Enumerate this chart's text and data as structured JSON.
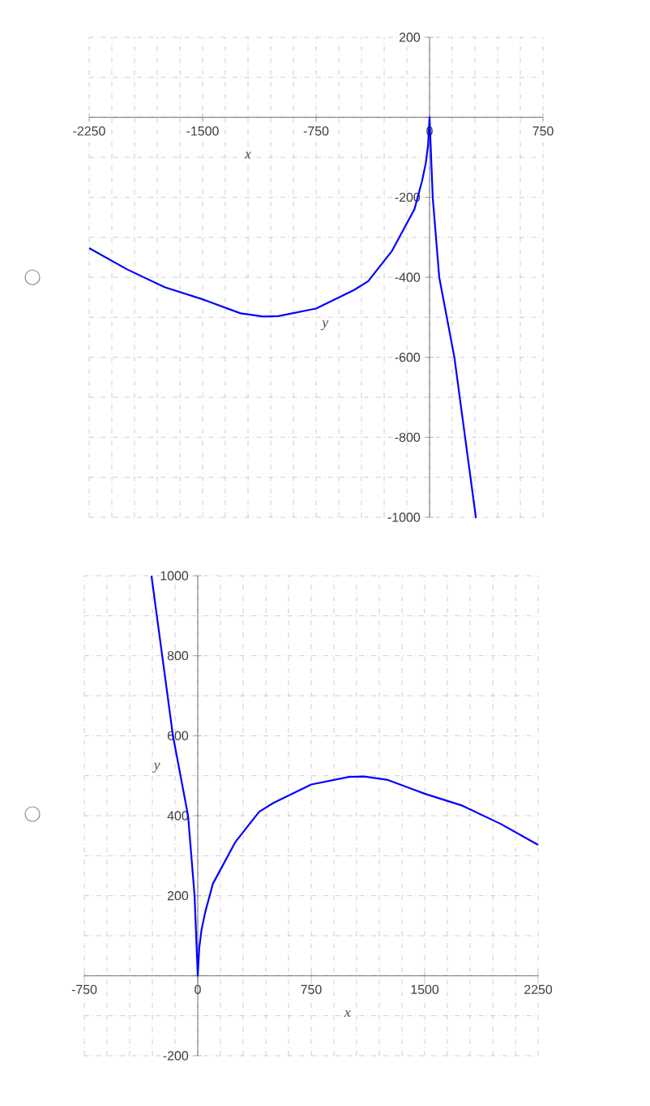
{
  "chart_data": [
    {
      "type": "line",
      "xlabel": "x",
      "ylabel": "y",
      "xlim": [
        -2250,
        750
      ],
      "ylim": [
        -1000,
        200
      ],
      "xticks": [
        -2250,
        -1500,
        -750,
        0,
        750
      ],
      "yticks": [
        -1000,
        -800,
        -600,
        -400,
        -200,
        {
          "value": 0,
          "label": null
        },
        200
      ],
      "grid": true,
      "marker": "none",
      "line_style": "solid",
      "series": [
        {
          "color": "#0000ff",
          "x": [
            -2250,
            -2000,
            -1750,
            -1500,
            -1250,
            -1100,
            -1000,
            -750,
            -500,
            -406,
            -250,
            -157,
            -100,
            -50,
            -25,
            -10,
            0,
            21,
            64,
            164,
            235,
            306,
            311
          ],
          "values": [
            -327,
            -380,
            -425,
            -455,
            -490,
            -498,
            -497,
            -478,
            -432,
            -410,
            -335,
            -270,
            -230,
            -160,
            -115,
            -70,
            0,
            -200,
            -400,
            -600,
            -800,
            -1000,
            -1000
          ]
        }
      ]
    },
    {
      "type": "line",
      "xlabel": "x",
      "ylabel": "y",
      "xlim": [
        -750,
        2250
      ],
      "ylim": [
        -200,
        1000
      ],
      "xticks": [
        -750,
        0,
        750,
        1500,
        2250
      ],
      "yticks": [
        -200,
        {
          "value": 0,
          "label": null
        },
        200,
        400,
        600,
        800,
        1000
      ],
      "grid": true,
      "marker": "none",
      "line_style": "solid",
      "series": [
        {
          "color": "#0000ff",
          "x": [
            -306,
            -235,
            -164,
            -64,
            -21,
            0,
            10,
            25,
            50,
            100,
            157,
            250,
            406,
            500,
            750,
            1000,
            1100,
            1250,
            1500,
            1750,
            2000,
            2250
          ],
          "values": [
            1000,
            800,
            600,
            400,
            200,
            0,
            70,
            115,
            160,
            230,
            270,
            335,
            410,
            432,
            478,
            497,
            498,
            490,
            455,
            425,
            380,
            327
          ]
        }
      ]
    }
  ]
}
